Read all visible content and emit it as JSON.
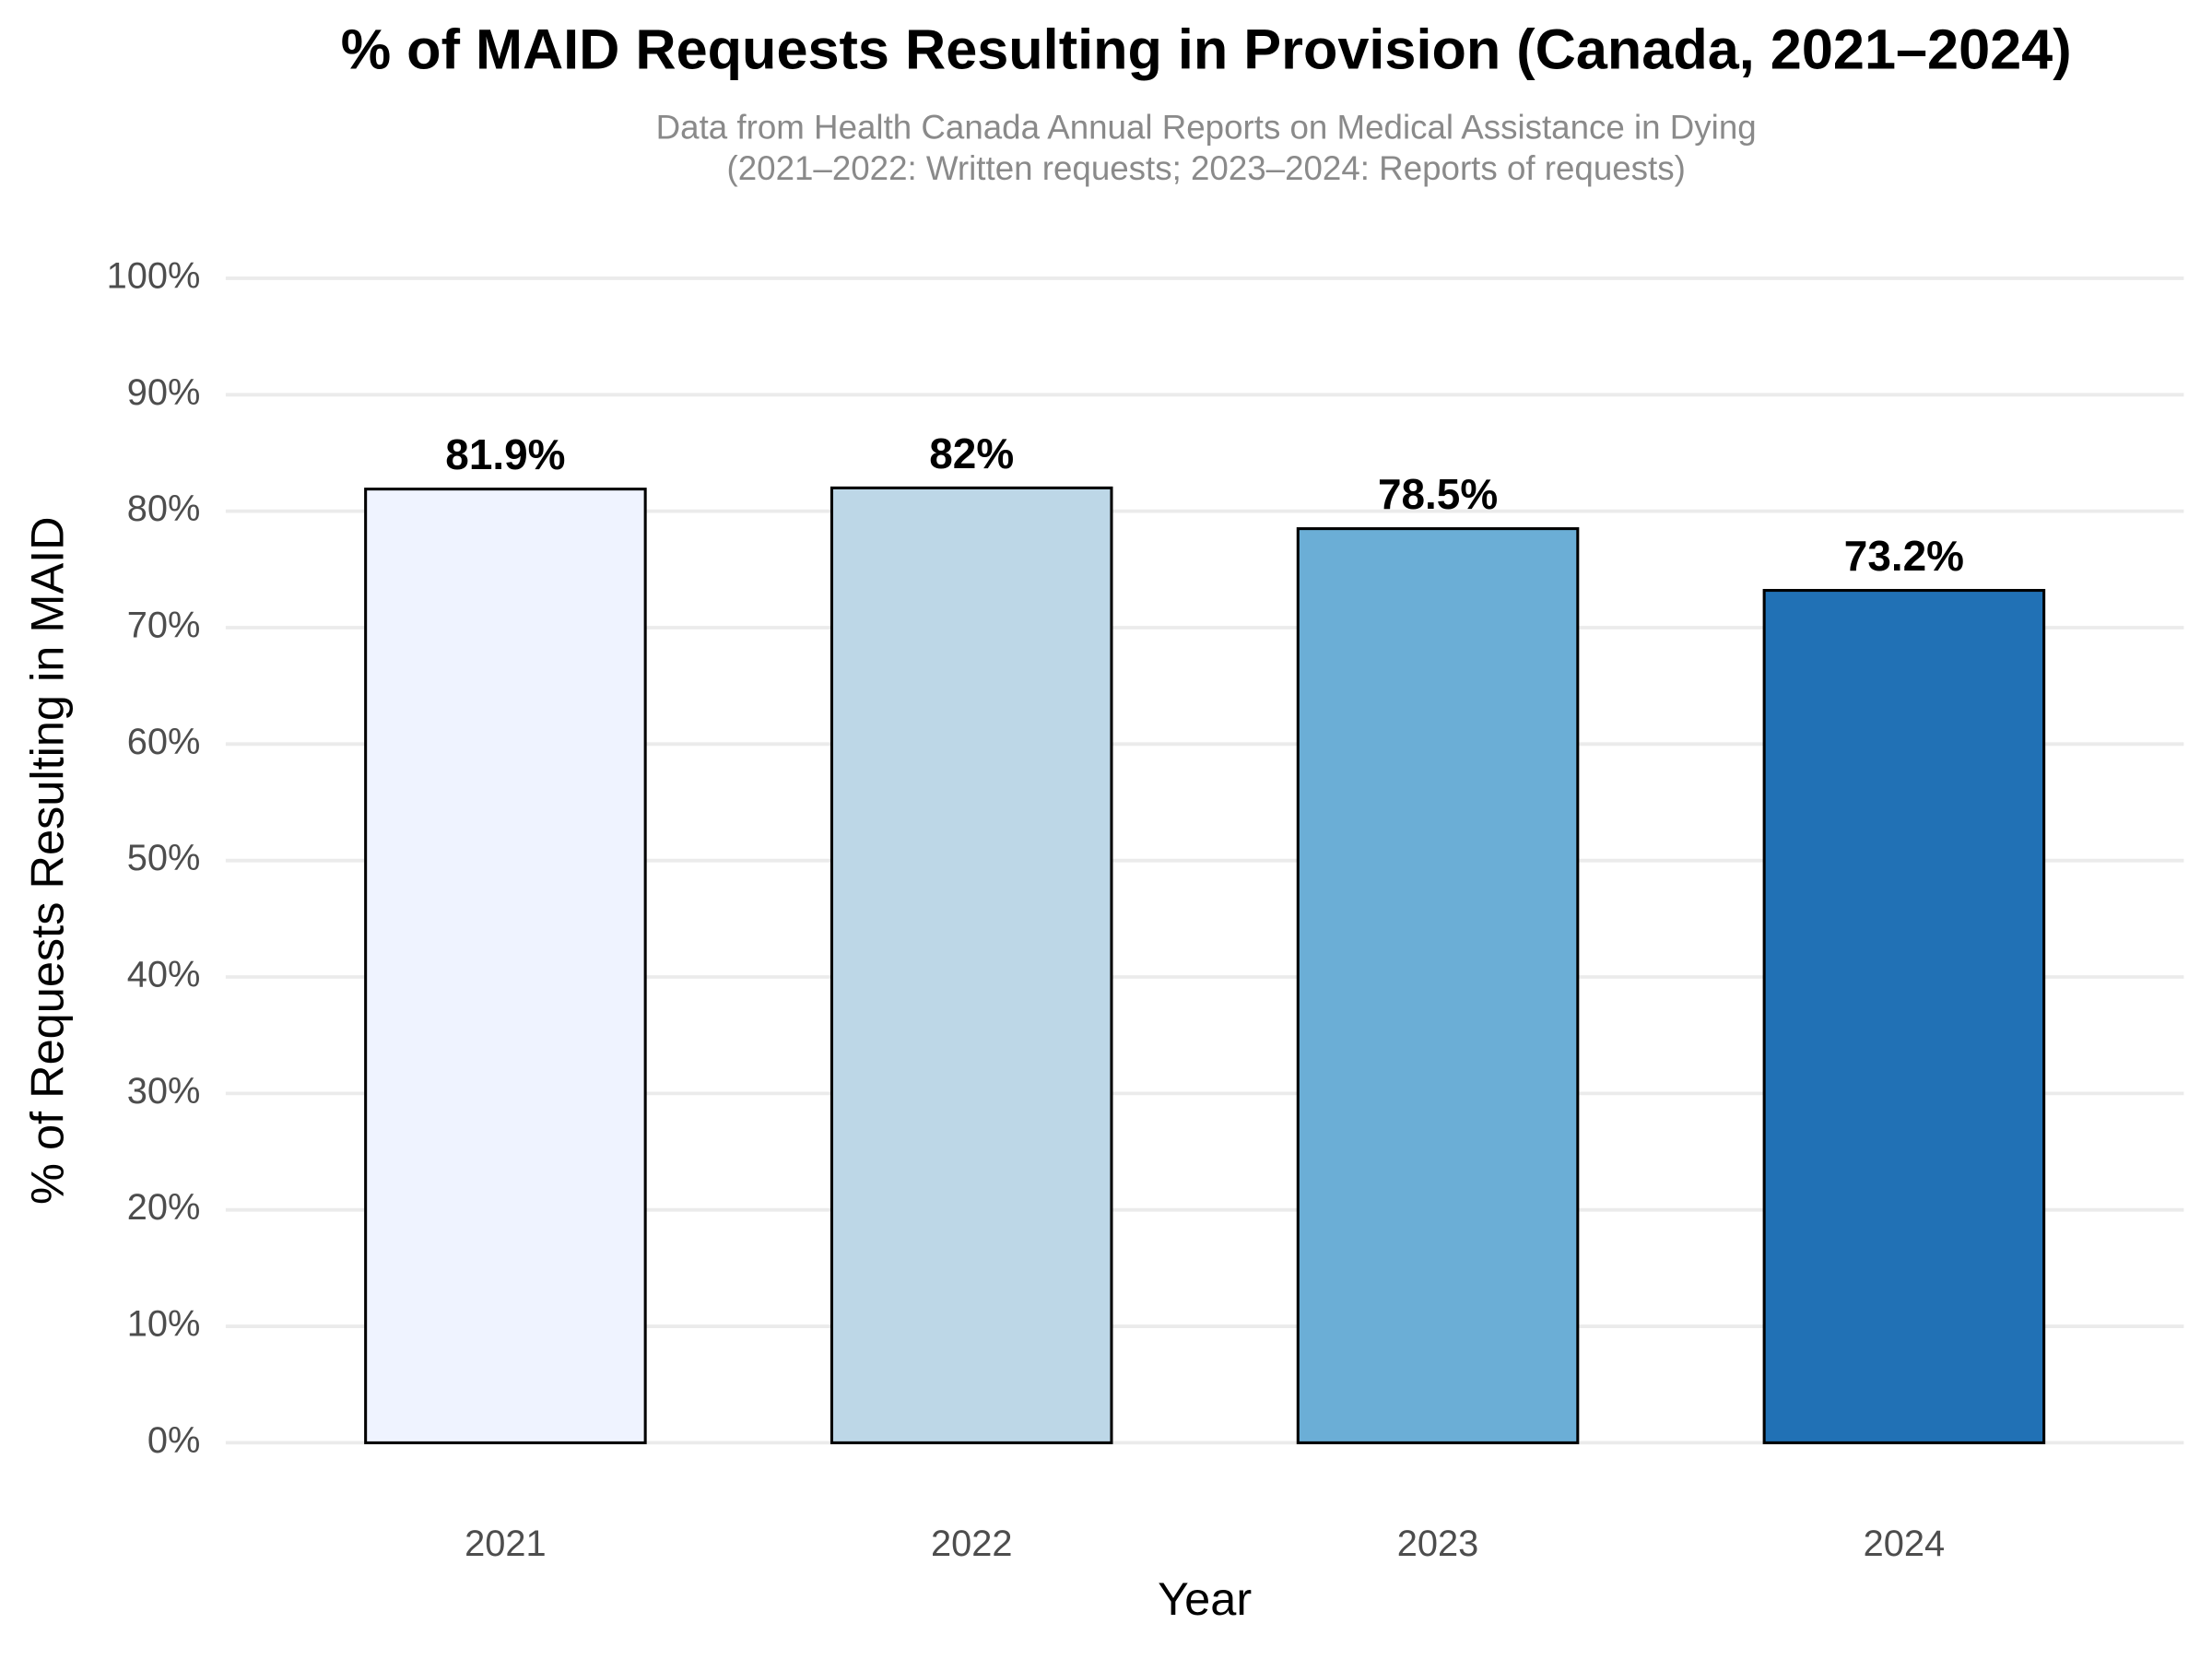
{
  "chart_data": {
    "type": "bar",
    "title": "% of MAID Requests Resulting in Provision (Canada, 2021–2024)",
    "subtitle": [
      "Data from Health Canada Annual Reports on Medical Assistance in Dying",
      "(2021–2022: Written requests; 2023–2024: Reports of requests)"
    ],
    "x_label": "Year",
    "y_label": "% of Requests Resulting in MAID",
    "categories": [
      "2021",
      "2022",
      "2023",
      "2024"
    ],
    "values": [
      81.9,
      82,
      78.5,
      73.2
    ],
    "value_labels": [
      "81.9%",
      "82%",
      "78.5%",
      "73.2%"
    ],
    "colors": [
      "#eff3ff",
      "#bdd7e7",
      "#6baed6",
      "#2171b5"
    ],
    "ylim": [
      -5,
      105
    ],
    "yticks": [
      {
        "value": 0,
        "label": "0%"
      },
      {
        "value": 10,
        "label": "10%"
      },
      {
        "value": 20,
        "label": "20%"
      },
      {
        "value": 30,
        "label": "30%"
      },
      {
        "value": 40,
        "label": "40%"
      },
      {
        "value": 50,
        "label": "50%"
      },
      {
        "value": 60,
        "label": "60%"
      },
      {
        "value": 70,
        "label": "70%"
      },
      {
        "value": 80,
        "label": "80%"
      },
      {
        "value": 90,
        "label": "90%"
      },
      {
        "value": 100,
        "label": "100%"
      }
    ],
    "grid": true
  }
}
